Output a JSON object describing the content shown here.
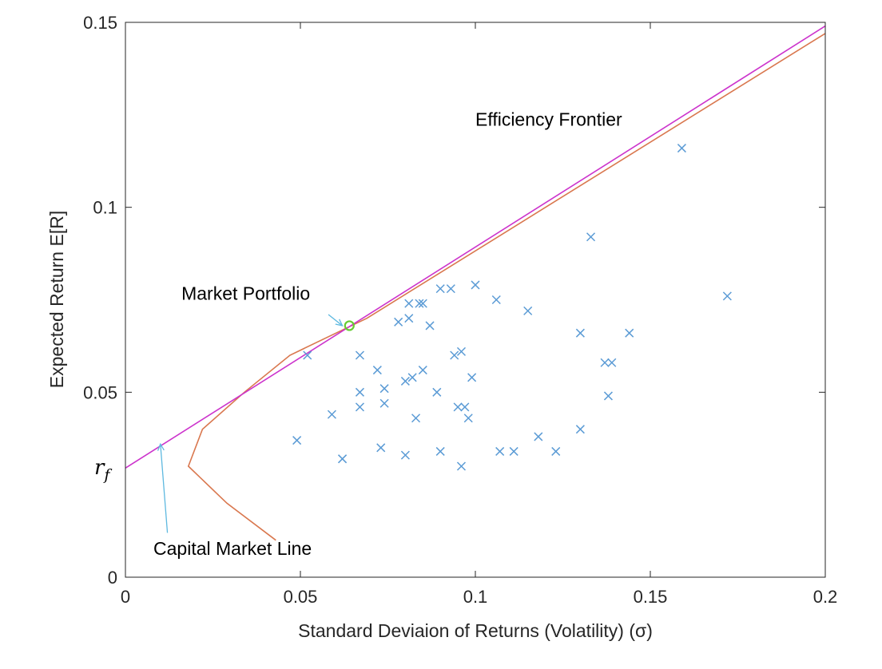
{
  "chart_data": {
    "type": "scatter",
    "xlabel": "Standard Deviaion of Returns (Volatility) (σ)",
    "ylabel": "Expected Return E[R]",
    "xlim": [
      0,
      0.2
    ],
    "ylim": [
      0,
      0.15
    ],
    "x_ticks": [
      "0",
      "0.05",
      "0.1",
      "0.15",
      "0.2"
    ],
    "y_ticks": [
      "0",
      "0.05",
      "0.1",
      "0.15"
    ],
    "grid": false,
    "series": [
      {
        "kind": "scatter",
        "marker": "x",
        "color": "#5b9bd5",
        "points": [
          [
            0.159,
            0.116
          ],
          [
            0.133,
            0.092
          ],
          [
            0.172,
            0.076
          ],
          [
            0.1,
            0.079
          ],
          [
            0.09,
            0.078
          ],
          [
            0.093,
            0.078
          ],
          [
            0.106,
            0.075
          ],
          [
            0.081,
            0.074
          ],
          [
            0.084,
            0.074
          ],
          [
            0.085,
            0.074
          ],
          [
            0.115,
            0.072
          ],
          [
            0.081,
            0.07
          ],
          [
            0.078,
            0.069
          ],
          [
            0.087,
            0.068
          ],
          [
            0.13,
            0.066
          ],
          [
            0.144,
            0.066
          ],
          [
            0.052,
            0.06
          ],
          [
            0.067,
            0.06
          ],
          [
            0.094,
            0.06
          ],
          [
            0.096,
            0.061
          ],
          [
            0.072,
            0.056
          ],
          [
            0.085,
            0.056
          ],
          [
            0.137,
            0.058
          ],
          [
            0.139,
            0.058
          ],
          [
            0.082,
            0.054
          ],
          [
            0.099,
            0.054
          ],
          [
            0.08,
            0.053
          ],
          [
            0.067,
            0.05
          ],
          [
            0.074,
            0.051
          ],
          [
            0.089,
            0.05
          ],
          [
            0.138,
            0.049
          ],
          [
            0.067,
            0.046
          ],
          [
            0.074,
            0.047
          ],
          [
            0.095,
            0.046
          ],
          [
            0.097,
            0.046
          ],
          [
            0.059,
            0.044
          ],
          [
            0.083,
            0.043
          ],
          [
            0.098,
            0.043
          ],
          [
            0.049,
            0.037
          ],
          [
            0.118,
            0.038
          ],
          [
            0.13,
            0.04
          ],
          [
            0.073,
            0.035
          ],
          [
            0.062,
            0.032
          ],
          [
            0.062,
            0.032
          ],
          [
            0.08,
            0.033
          ],
          [
            0.09,
            0.034
          ],
          [
            0.107,
            0.034
          ],
          [
            0.111,
            0.034
          ],
          [
            0.123,
            0.034
          ],
          [
            0.096,
            0.03
          ]
        ]
      },
      {
        "kind": "line",
        "color": "#d9774e",
        "points": [
          [
            0.043,
            0.01
          ],
          [
            0.029,
            0.02
          ],
          [
            0.018,
            0.03
          ],
          [
            0.022,
            0.04
          ],
          [
            0.034,
            0.05
          ],
          [
            0.047,
            0.06
          ],
          [
            0.069,
            0.07
          ],
          [
            0.2,
            0.147
          ]
        ]
      },
      {
        "kind": "line",
        "color": "#cc33cc",
        "points": [
          [
            0,
            0.0295
          ],
          [
            0.2,
            0.149
          ]
        ]
      },
      {
        "kind": "marker",
        "marker": "circle",
        "color": "#66cc33",
        "points": [
          [
            0.064,
            0.068
          ]
        ]
      }
    ],
    "annotations": [
      {
        "text": "Efficiency Frontier",
        "at": [
          0.1,
          0.122
        ]
      },
      {
        "text": "Market Portfolio",
        "at": [
          0.016,
          0.075
        ]
      },
      {
        "text": "Capital Market Line",
        "at": [
          0.008,
          0.006
        ]
      }
    ],
    "arrows": [
      {
        "from": [
          0.058,
          0.071
        ],
        "to": [
          0.062,
          0.068
        ],
        "color": "#5eb9e0"
      },
      {
        "from": [
          0.012,
          0.012
        ],
        "to": [
          0.01,
          0.036
        ],
        "color": "#5eb9e0"
      }
    ],
    "rf_label": {
      "text": "r",
      "subscript": "f"
    }
  }
}
